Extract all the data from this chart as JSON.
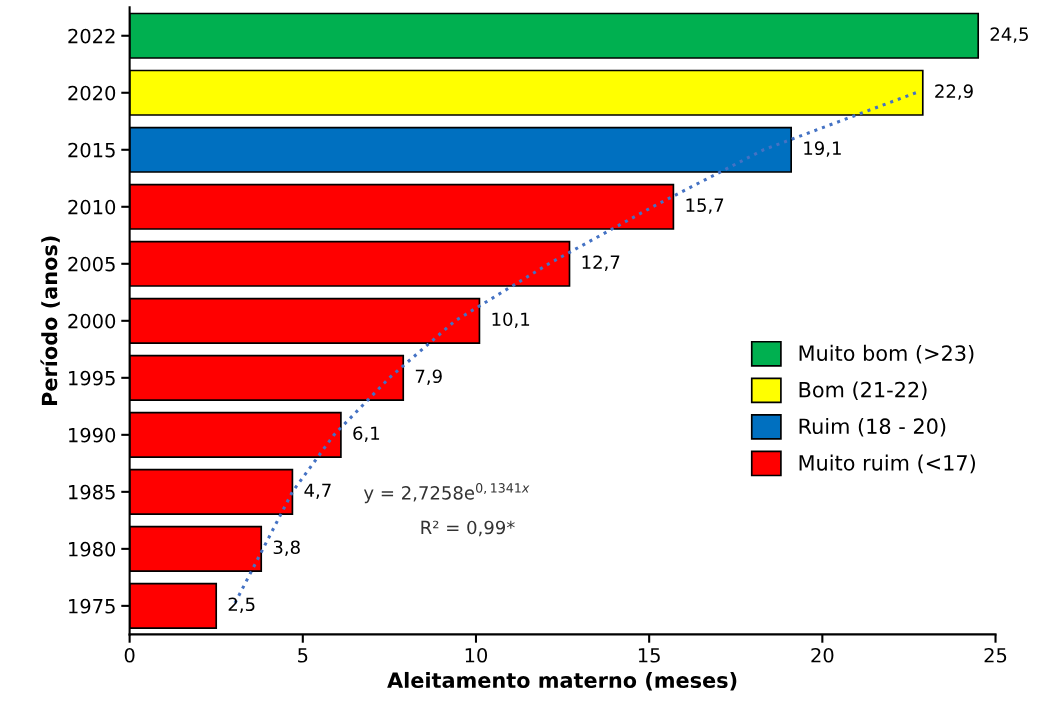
{
  "chart_data": {
    "type": "bar",
    "orientation": "horizontal",
    "xlabel": "Aleitamento materno (meses)",
    "ylabel": "Período (anos)",
    "categories": [
      "2022",
      "2020",
      "2015",
      "2010",
      "2005",
      "2000",
      "1995",
      "1990",
      "1985",
      "1980",
      "1975"
    ],
    "series": [
      {
        "name": "Muito bom (>23)",
        "color": "#00b050",
        "values": [
          24.5,
          null,
          null,
          null,
          null,
          null,
          null,
          null,
          null,
          null,
          null
        ],
        "value_labels": [
          "24,5",
          null,
          null,
          null,
          null,
          null,
          null,
          null,
          null,
          null,
          null
        ]
      },
      {
        "name": "Bom (21-22)",
        "color": "#ffff00",
        "values": [
          null,
          22.9,
          null,
          null,
          null,
          null,
          null,
          null,
          null,
          null,
          null
        ],
        "value_labels": [
          null,
          "22,9",
          null,
          null,
          null,
          null,
          null,
          null,
          null,
          null,
          null
        ]
      },
      {
        "name": "Ruim (18 - 20)",
        "color": "#0070c0",
        "values": [
          null,
          null,
          19.1,
          null,
          null,
          null,
          null,
          null,
          null,
          null,
          null
        ],
        "value_labels": [
          null,
          null,
          "19,1",
          null,
          null,
          null,
          null,
          null,
          null,
          null,
          null
        ]
      },
      {
        "name": "Muito ruim (<17)",
        "color": "#ff0000",
        "values": [
          null,
          null,
          null,
          15.7,
          12.7,
          10.1,
          7.9,
          6.1,
          4.7,
          3.8,
          2.5
        ],
        "value_labels": [
          null,
          null,
          null,
          "15,7",
          "12,7",
          "10,1",
          "7,9",
          "6,1",
          "4,7",
          "3,8",
          "2,5"
        ]
      },
      {
        "type": "line",
        "color": "#4472c4",
        "line_style": "dotted",
        "values": [
          null,
          22.7,
          18.3,
          15.1,
          12.1,
          9.4,
          7.5,
          5.9,
          4.7,
          3.85,
          3.0
        ]
      }
    ],
    "annotations": [
      "y = 2,7258e$^{0,1341x}$",
      "R² = 0,99*"
    ],
    "xlim": [
      0,
      25
    ],
    "xticks": [
      0,
      5,
      10,
      15,
      20,
      25
    ],
    "grid": false,
    "legend": "right"
  }
}
